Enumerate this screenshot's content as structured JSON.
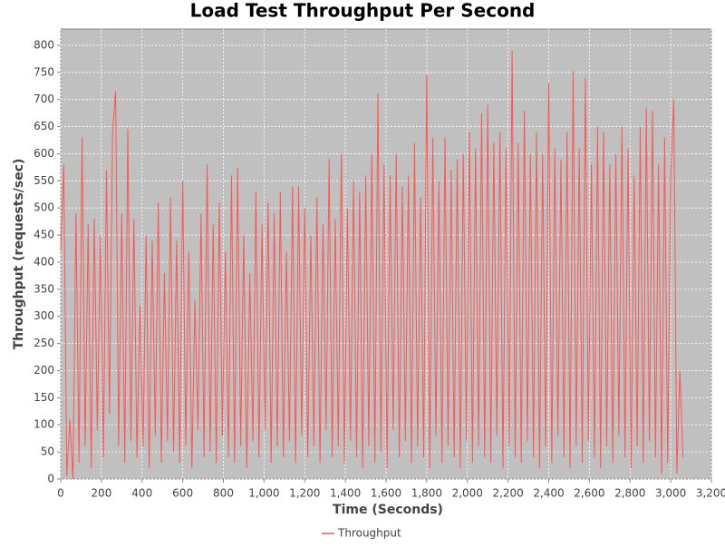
{
  "chart_data": {
    "type": "line",
    "title": "Load Test Throughput Per Second",
    "x_label": "Time (Seconds)",
    "y_label": "Throughput (requests/sec)",
    "xlim": [
      0,
      3200
    ],
    "ylim": [
      0,
      830
    ],
    "xticks": [
      0,
      200,
      400,
      600,
      800,
      {
        "value": 1000,
        "label": "1,000"
      },
      {
        "value": 1200,
        "label": "1,200"
      },
      {
        "value": 1400,
        "label": "1,400"
      },
      {
        "value": 1600,
        "label": "1,600"
      },
      {
        "value": 1800,
        "label": "1,800"
      },
      {
        "value": 2000,
        "label": "2,000"
      },
      {
        "value": 2200,
        "label": "2,200"
      },
      {
        "value": 2400,
        "label": "2,400"
      },
      {
        "value": 2600,
        "label": "2,600"
      },
      {
        "value": 2800,
        "label": "2,800"
      },
      {
        "value": 3000,
        "label": "3,000"
      },
      {
        "value": 3200,
        "label": "3,200"
      }
    ],
    "yticks": [
      0,
      50,
      100,
      150,
      200,
      250,
      300,
      350,
      400,
      450,
      500,
      550,
      600,
      650,
      700,
      750,
      800
    ],
    "grid": true,
    "legend": "bottom",
    "x": [
      0,
      15,
      30,
      45,
      60,
      75,
      90,
      105,
      120,
      135,
      150,
      165,
      180,
      195,
      210,
      225,
      240,
      255,
      270,
      285,
      300,
      315,
      330,
      345,
      360,
      375,
      390,
      405,
      420,
      435,
      450,
      465,
      480,
      495,
      510,
      525,
      540,
      555,
      570,
      585,
      600,
      615,
      630,
      645,
      660,
      675,
      690,
      705,
      720,
      735,
      750,
      765,
      780,
      795,
      810,
      825,
      840,
      855,
      870,
      885,
      900,
      915,
      930,
      945,
      960,
      975,
      990,
      1005,
      1020,
      1035,
      1050,
      1065,
      1080,
      1095,
      1110,
      1125,
      1140,
      1155,
      1170,
      1185,
      1200,
      1215,
      1230,
      1245,
      1260,
      1275,
      1290,
      1305,
      1320,
      1335,
      1350,
      1365,
      1380,
      1395,
      1410,
      1425,
      1440,
      1455,
      1470,
      1485,
      1500,
      1515,
      1530,
      1545,
      1560,
      1575,
      1590,
      1605,
      1620,
      1635,
      1650,
      1665,
      1680,
      1695,
      1710,
      1725,
      1740,
      1755,
      1770,
      1785,
      1800,
      1815,
      1830,
      1845,
      1860,
      1875,
      1890,
      1905,
      1920,
      1935,
      1950,
      1965,
      1980,
      1995,
      2010,
      2025,
      2040,
      2055,
      2070,
      2085,
      2100,
      2115,
      2130,
      2145,
      2160,
      2175,
      2190,
      2205,
      2220,
      2235,
      2250,
      2265,
      2280,
      2295,
      2310,
      2325,
      2340,
      2355,
      2370,
      2385,
      2400,
      2415,
      2430,
      2445,
      2460,
      2475,
      2490,
      2505,
      2520,
      2535,
      2550,
      2565,
      2580,
      2595,
      2610,
      2625,
      2640,
      2655,
      2670,
      2685,
      2700,
      2715,
      2730,
      2745,
      2760,
      2775,
      2790,
      2805,
      2820,
      2835,
      2850,
      2865,
      2880,
      2895,
      2910,
      2925,
      2940,
      2955,
      2970,
      2985,
      3000,
      3015,
      3030,
      3045,
      3060
    ],
    "series": [
      {
        "name": "Throughput",
        "color": "#ff5555",
        "values": [
          420,
          580,
          5,
          110,
          0,
          490,
          30,
          630,
          60,
          470,
          20,
          480,
          90,
          450,
          40,
          570,
          120,
          640,
          715,
          60,
          490,
          30,
          645,
          70,
          480,
          40,
          320,
          60,
          450,
          20,
          440,
          80,
          510,
          30,
          380,
          70,
          520,
          50,
          440,
          30,
          550,
          60,
          420,
          20,
          330,
          90,
          490,
          40,
          580,
          50,
          470,
          30,
          510,
          80,
          420,
          40,
          560,
          30,
          575,
          60,
          450,
          20,
          380,
          70,
          530,
          40,
          470,
          90,
          510,
          30,
          490,
          60,
          530,
          40,
          420,
          70,
          540,
          30,
          540,
          80,
          500,
          40,
          450,
          60,
          520,
          30,
          470,
          90,
          590,
          40,
          480,
          60,
          600,
          30,
          500,
          70,
          550,
          40,
          530,
          20,
          560,
          60,
          600,
          30,
          712,
          50,
          580,
          20,
          560,
          90,
          600,
          40,
          540,
          70,
          560,
          30,
          620,
          60,
          520,
          40,
          745,
          20,
          630,
          80,
          550,
          30,
          630,
          60,
          570,
          40,
          590,
          20,
          600,
          70,
          640,
          30,
          610,
          60,
          675,
          40,
          690,
          30,
          620,
          80,
          640,
          20,
          610,
          60,
          790,
          40,
          620,
          30,
          680,
          70,
          600,
          40,
          640,
          20,
          600,
          60,
          730,
          30,
          610,
          80,
          590,
          40,
          640,
          20,
          752,
          60,
          610,
          30,
          740,
          70,
          580,
          40,
          650,
          20,
          640,
          60,
          580,
          30,
          600,
          80,
          650,
          40,
          610,
          20,
          560,
          60,
          650,
          30,
          685,
          70,
          680,
          40,
          580,
          10,
          630,
          30,
          560,
          700,
          10,
          200,
          40
        ]
      }
    ]
  }
}
